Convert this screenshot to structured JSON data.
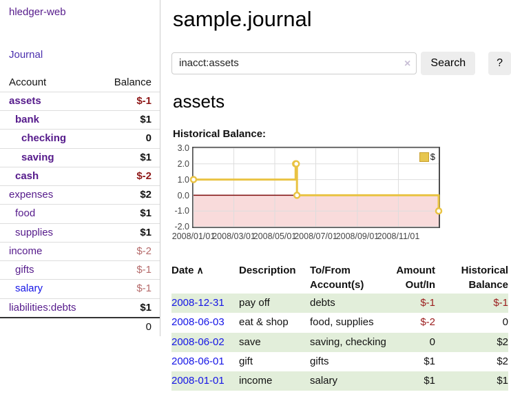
{
  "sidebar": {
    "brand": "hledger-web",
    "nav": {
      "journal": "Journal"
    },
    "accounts_table": {
      "headers": {
        "account": "Account",
        "balance": "Balance"
      },
      "rows": [
        {
          "name": "assets",
          "balance": "$-1",
          "depth": 1,
          "bold": true
        },
        {
          "name": "bank",
          "balance": "$1",
          "depth": 2,
          "bold": true
        },
        {
          "name": "checking",
          "balance": "0",
          "depth": 3,
          "bold": true
        },
        {
          "name": "saving",
          "balance": "$1",
          "depth": 3,
          "bold": true
        },
        {
          "name": "cash",
          "balance": "$-2",
          "depth": 2,
          "bold": true
        },
        {
          "name": "expenses",
          "balance": "$2",
          "depth": 1,
          "bold": false
        },
        {
          "name": "food",
          "balance": "$1",
          "depth": 2,
          "bold": false
        },
        {
          "name": "supplies",
          "balance": "$1",
          "depth": 2,
          "bold": false
        },
        {
          "name": "income",
          "balance": "$-2",
          "depth": 1,
          "bold": false
        },
        {
          "name": "gifts",
          "balance": "$-1",
          "depth": 2,
          "bold": false
        },
        {
          "name": "salary",
          "balance": "$-1",
          "depth": 2,
          "bold": false,
          "variant": "blue"
        },
        {
          "name": "liabilities:debts",
          "balance": "$1",
          "depth": 1,
          "bold": false
        }
      ],
      "total": "0"
    }
  },
  "header": {
    "title": "sample.journal"
  },
  "search": {
    "value": "inacct:assets",
    "clear_icon": "×",
    "button_label": "Search",
    "help_label": "?"
  },
  "account_page": {
    "heading": "assets",
    "chart_title": "Historical Balance:"
  },
  "chart_data": {
    "type": "line",
    "step": true,
    "title": "Historical Balance:",
    "xrange": [
      "2008-01-01",
      "2008-12-31"
    ],
    "ylim": [
      -2,
      3
    ],
    "yticks": [
      {
        "label": "3.0",
        "value": 3
      },
      {
        "label": "2.0",
        "value": 2
      },
      {
        "label": "1.0",
        "value": 1
      },
      {
        "label": "0.0",
        "value": 0
      },
      {
        "label": "-1.0",
        "value": -1
      },
      {
        "label": "-2.0",
        "value": -2
      }
    ],
    "xticks": [
      {
        "label": "2008/01/01",
        "date": "2008-01-01"
      },
      {
        "label": "2008/03/01",
        "date": "2008-03-01"
      },
      {
        "label": "2008/05/01",
        "date": "2008-05-01"
      },
      {
        "label": "2008/07/01",
        "date": "2008-07-01"
      },
      {
        "label": "2008/09/01",
        "date": "2008-09-01"
      },
      {
        "label": "2008/11/01",
        "date": "2008-11-01"
      }
    ],
    "series": [
      {
        "name": "$",
        "color": "#e9c343",
        "points": [
          [
            "2008-01-01",
            1
          ],
          [
            "2008-06-01",
            2
          ],
          [
            "2008-06-02",
            2
          ],
          [
            "2008-06-03",
            0
          ],
          [
            "2008-12-31",
            -1
          ]
        ]
      }
    ],
    "legend": {
      "label": "$",
      "position": "top-right",
      "swatch_color": "#e7c64f"
    },
    "grid": true,
    "grid_color": "#dddddd",
    "zero_line_color": "#7d0b0b",
    "negative_region_color": "#f9dbdb"
  },
  "transactions": {
    "columns": [
      "Date",
      "Description",
      "To/From Account(s)",
      "Amount Out/In",
      "Historical Balance"
    ],
    "date_sort_icon": "∧",
    "rows": [
      {
        "date": "2008-12-31",
        "description": "pay off",
        "accounts": "debts",
        "amount": "$-1",
        "balance": "$-1"
      },
      {
        "date": "2008-06-03",
        "description": "eat & shop",
        "accounts": "food, supplies",
        "amount": "$-2",
        "balance": "0"
      },
      {
        "date": "2008-06-02",
        "description": "save",
        "accounts": "saving, checking",
        "amount": "0",
        "balance": "$2"
      },
      {
        "date": "2008-06-01",
        "description": "gift",
        "accounts": "gifts",
        "amount": "$1",
        "balance": "$2"
      },
      {
        "date": "2008-01-01",
        "description": "income",
        "accounts": "salary",
        "amount": "$1",
        "balance": "$1"
      }
    ]
  },
  "colors": {
    "link_purple": "#551a8b",
    "link_blue": "#1414e6",
    "negative_strong": "#8e1818",
    "negative_soft": "#b56a6a",
    "stripe_green": "#e2eeda"
  }
}
